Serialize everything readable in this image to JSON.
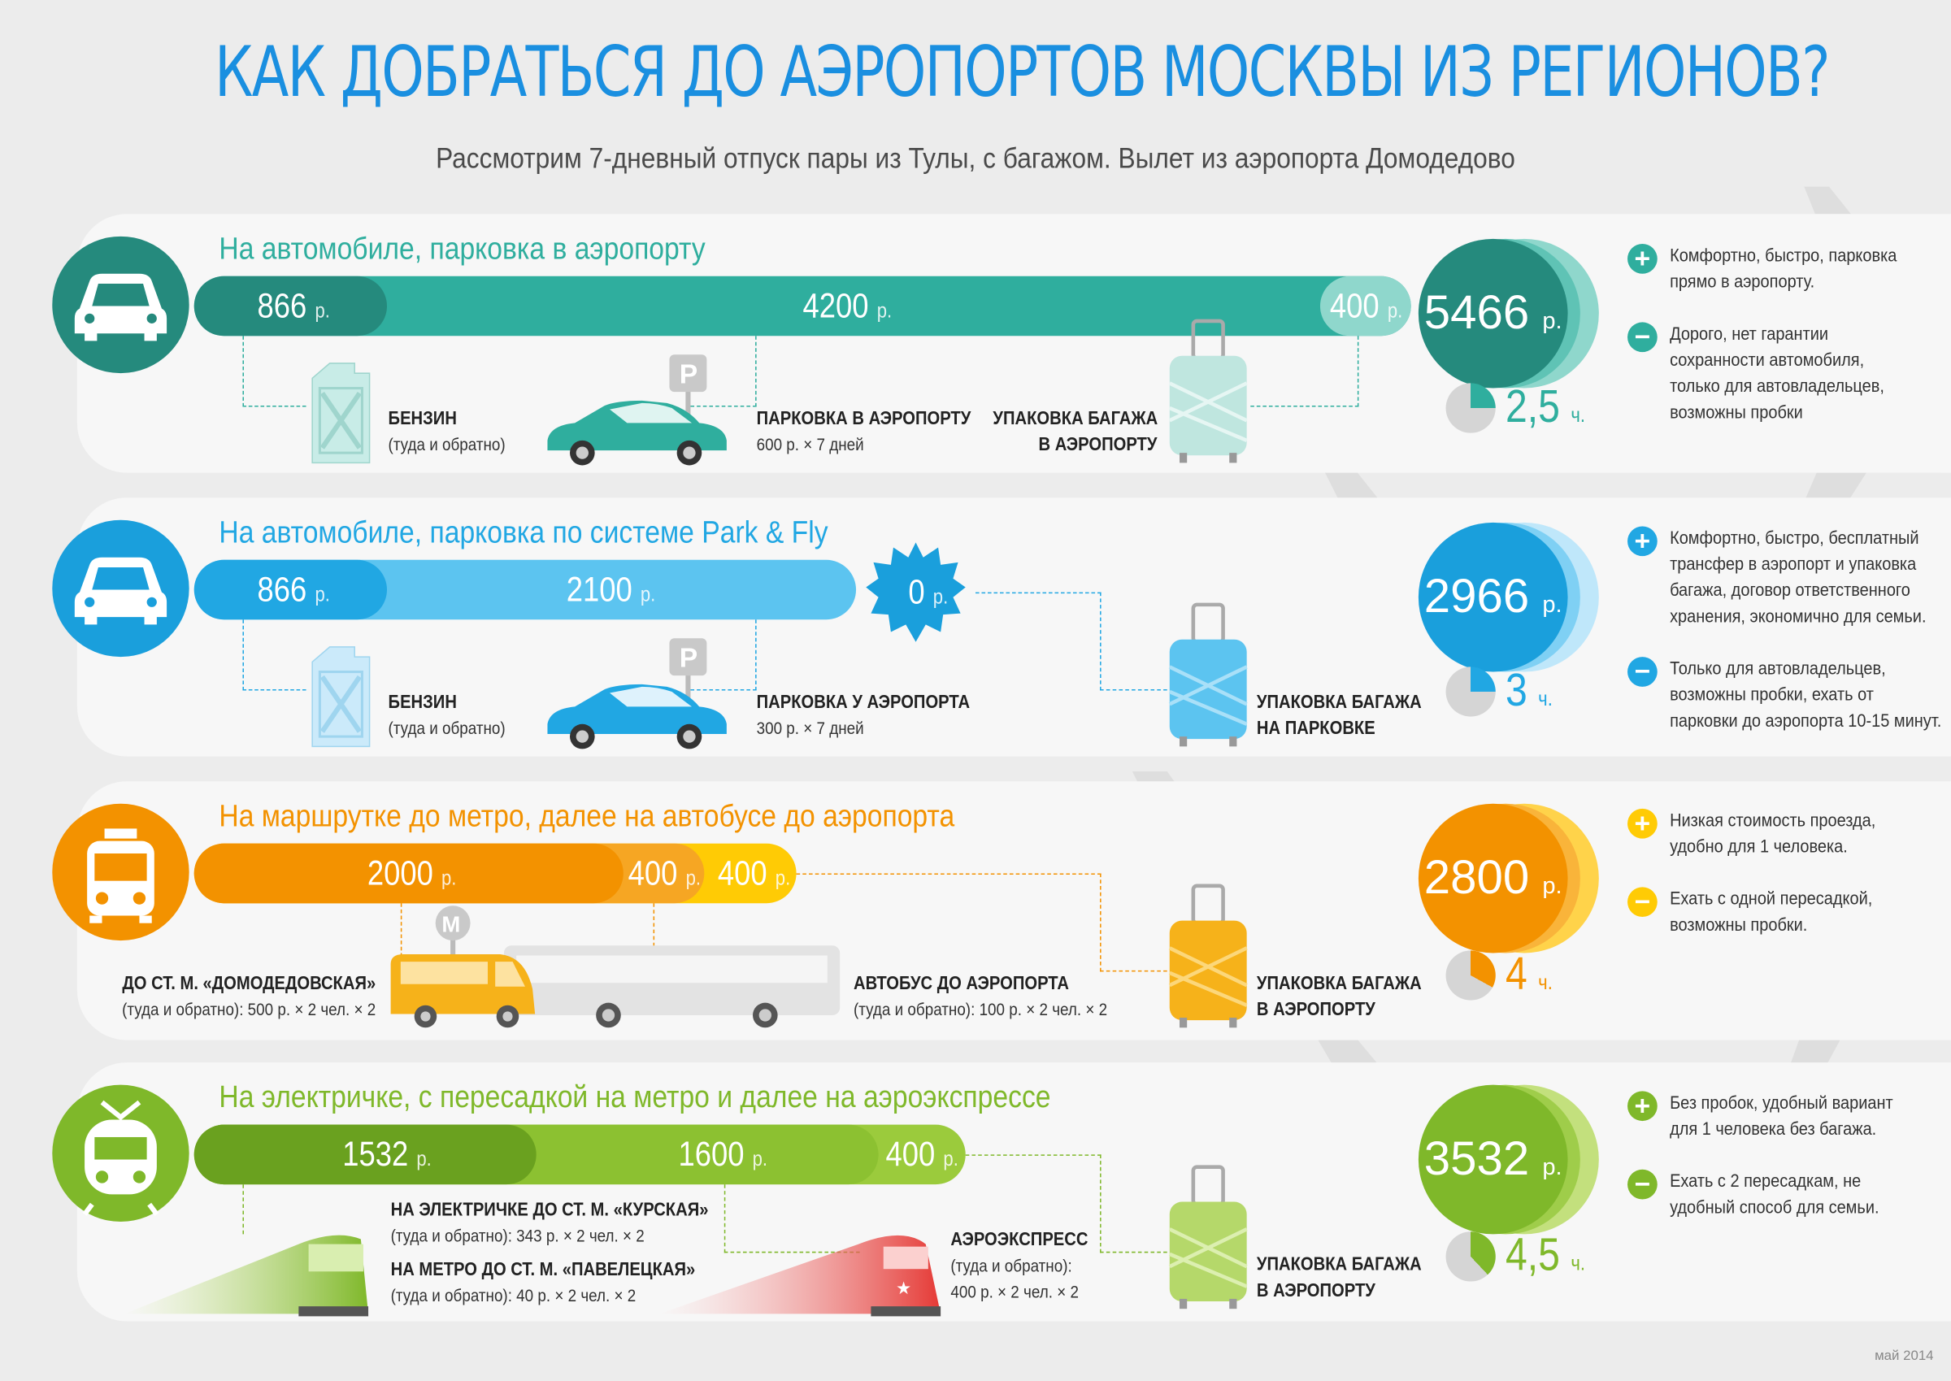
{
  "title": "КАК ДОБРАТЬСЯ ДО АЭРОПОРТОВ МОСКВЫ ИЗ РЕГИОНОВ?",
  "subtitle": "Рассмотрим 7-дневный отпуск пары из Тулы, с багажом. Вылет из аэропорта Домодедово",
  "footer": "май 2014",
  "currency": "р.",
  "hours_unit": "ч.",
  "routes": [
    {
      "title": "На автомобиле, парковка в аэропорту",
      "color": "#2fae9e",
      "dark": "#258a7d",
      "light": "#8fd7cc",
      "icon": "car-icon",
      "segments": [
        "866",
        "4200",
        "400"
      ],
      "total": "5466",
      "hours": "2,5",
      "hours_fraction": 0.25,
      "items": [
        {
          "icon": "fuel-canister-icon",
          "title": "БЕНЗИН",
          "detail": "(туда и обратно)"
        },
        {
          "icon": "parked-car-icon",
          "title": "ПАРКОВКА В АЭРОПОРТУ",
          "detail": "600 р. × 7 дней"
        },
        {
          "icon": "suitcase-icon",
          "title": "УПАКОВКА БАГАЖА",
          "detail": "В АЭРОПОРТУ"
        }
      ],
      "pros": "Комфортно, быстро, парковка прямо в аэропорту.",
      "cons": "Дорого, нет гарантии сохранности автомобиля, только для автовладельцев, возможны пробки"
    },
    {
      "title": "На автомобиле, парковка по системе Park & Fly",
      "color": "#21a7e3",
      "dark": "#1a8fc6",
      "light": "#9fdcf7",
      "icon": "car-icon",
      "segments": [
        "866",
        "2100"
      ],
      "badge": "0",
      "total": "2966",
      "hours": "3",
      "hours_fraction": 0.25,
      "items": [
        {
          "icon": "fuel-canister-icon",
          "title": "БЕНЗИН",
          "detail": "(туда и обратно)"
        },
        {
          "icon": "parked-car-icon",
          "title": "ПАРКОВКА У АЭРОПОРТА",
          "detail": "300 р. × 7 дней"
        },
        {
          "icon": "suitcase-icon",
          "title": "УПАКОВКА БАГАЖА",
          "detail": "НА ПАРКОВКЕ"
        }
      ],
      "pros": "Комфортно, быстро, бесплатный трансфер в аэропорт и упаковка багажа, договор ответственного хранения, экономично для семьи.",
      "cons": "Только для автовладельцев, возможны пробки, ехать от парковки до аэропорта 10-15 минут."
    },
    {
      "title": "На маршрутке до метро, далее на автобусе до аэропорта",
      "color": "#f39200",
      "dark": "#e07800",
      "light": "#ffd34a",
      "icon": "minibus-icon",
      "segments": [
        "2000",
        "400",
        "400"
      ],
      "total": "2800",
      "hours": "4",
      "hours_fraction": 0.33,
      "items": [
        {
          "icon": "minibus-icon",
          "title": "ДО СТ. М. «ДОМОДЕДОВСКАЯ»",
          "detail": "(туда и обратно): 500 р. × 2 чел. × 2"
        },
        {
          "icon": "bus-icon",
          "title": "АВТОБУС ДО АЭРОПОРТА",
          "detail": "(туда и обратно): 100 р. × 2 чел. × 2"
        },
        {
          "icon": "suitcase-icon",
          "title": "УПАКОВКА БАГАЖА",
          "detail": "В АЭРОПОРТУ"
        }
      ],
      "pros": "Низкая стоимость проезда, удобно для 1 человека.",
      "cons": "Ехать с одной пересадкой, возможны пробки."
    },
    {
      "title": "На электричке, с пересадкой на метро и далее на аэроэкспрессе",
      "color": "#7fb82a",
      "dark": "#6aa11f",
      "light": "#c3e07d",
      "icon": "train-icon",
      "segments": [
        "1532",
        "1600",
        "400"
      ],
      "total": "3532",
      "hours": "4,5",
      "hours_fraction": 0.38,
      "items": [
        {
          "icon": "commuter-train-icon",
          "title": "НА ЭЛЕКТРИЧКЕ ДО СТ. М. «КУРСКАЯ»",
          "detail": "(туда и обратно): 343 р. × 2 чел. × 2"
        },
        {
          "icon": "metro-icon",
          "title": "НА МЕТРО ДО СТ. М. «ПАВЕЛЕЦКАЯ»",
          "detail": "(туда и обратно): 40 р. × 2 чел. × 2"
        },
        {
          "icon": "aeroexpress-train-icon",
          "title": "АЭРОЭКСПРЕСС",
          "detail": "(туда и обратно):",
          "detail2": "400 р. × 2 чел. × 2"
        },
        {
          "icon": "suitcase-icon",
          "title": "УПАКОВКА БАГАЖА",
          "detail": "В АЭРОПОРТУ"
        }
      ],
      "pros": "Без пробок, удобный вариант для 1 человека без багажа.",
      "cons": "Ехать с 2 пересадкам, не удобный способ для семьи."
    }
  ]
}
